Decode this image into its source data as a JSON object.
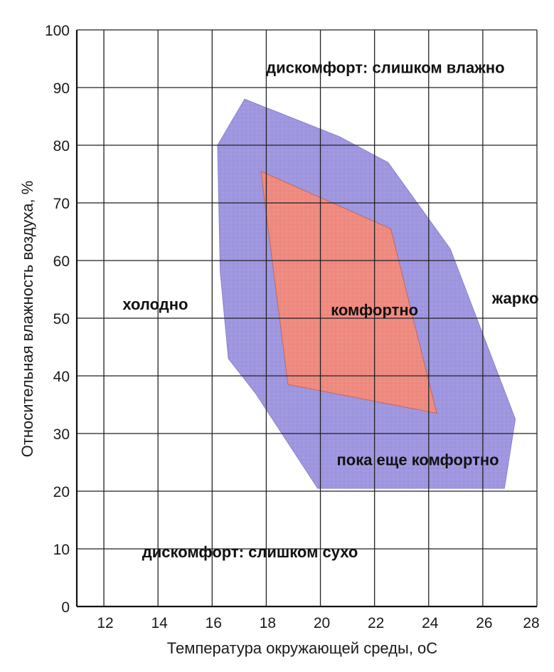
{
  "chart_data": {
    "type": "area",
    "title": "",
    "xlabel": "Температура окружающей среды, oC",
    "ylabel": "Относительная влажность воздуха, %",
    "xlim": [
      11,
      28
    ],
    "ylim": [
      0,
      100
    ],
    "xticks": [
      12,
      14,
      16,
      18,
      20,
      22,
      24,
      26,
      28
    ],
    "yticks": [
      0,
      10,
      20,
      30,
      40,
      50,
      60,
      70,
      80,
      90,
      100
    ],
    "xtick_labels": [
      "12",
      "14",
      "16",
      "18",
      "20",
      "22",
      "24",
      "26",
      "28"
    ],
    "ytick_labels": [
      "0",
      "10",
      "20",
      "30",
      "40",
      "50",
      "60",
      "70",
      "80",
      "90",
      "100"
    ],
    "grid": true,
    "regions": [
      {
        "name": "пока еще комфортно",
        "color": "#9f96e0",
        "points": [
          [
            17.2,
            88
          ],
          [
            20.7,
            81.5
          ],
          [
            22.5,
            77
          ],
          [
            24.8,
            62
          ],
          [
            27.2,
            32.5
          ],
          [
            26.8,
            20.5
          ],
          [
            19.9,
            20.5
          ],
          [
            17.6,
            37
          ],
          [
            16.6,
            43
          ],
          [
            16.3,
            58
          ],
          [
            16.2,
            80
          ]
        ]
      },
      {
        "name": "комфортно",
        "color": "#ef8a80",
        "points": [
          [
            17.8,
            75.5
          ],
          [
            22.6,
            65.5
          ],
          [
            24.3,
            33.5
          ],
          [
            18.8,
            38.5
          ]
        ]
      }
    ],
    "annotations": [
      {
        "text": "дискомфорт: слишком влажно",
        "x": 22.4,
        "y": 93.5
      },
      {
        "text": "холодно",
        "x": 13.9,
        "y": 52.5
      },
      {
        "text": "комфортно",
        "x": 22.0,
        "y": 51.5
      },
      {
        "text": "жарко",
        "x": 27.2,
        "y": 53.5
      },
      {
        "text": "пока еще комфортно",
        "x": 23.6,
        "y": 25.5
      },
      {
        "text": "дискомфорт: слишком сухо",
        "x": 17.4,
        "y": 9.5
      }
    ]
  }
}
